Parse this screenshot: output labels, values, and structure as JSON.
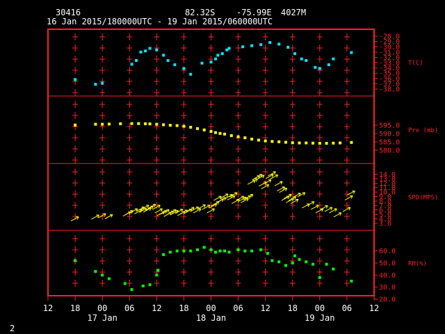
{
  "header": {
    "station": "30416",
    "lat": "82.32S",
    "lon": "-75.99E",
    "elev": "4027M",
    "range": "16 Jan 2015/180000UTC - 19 Jan 2015/060000UTC"
  },
  "footer": {
    "page": "2"
  },
  "colors": {
    "frame": "#ff2020",
    "temp": "#00e5ff",
    "pres": "#ffff00",
    "wind": "#ffff00",
    "rh": "#00ff00",
    "text": "#ffffff"
  },
  "chart_data": {
    "type": "scatter",
    "x_unit_hours_from_17Jan00UTC": true,
    "x_ticks": [
      "12",
      "18",
      "00",
      "06",
      "12",
      "18",
      "00",
      "06",
      "12",
      "18",
      "00",
      "06",
      "12"
    ],
    "x_tick_hours": [
      -12,
      -6,
      0,
      6,
      12,
      18,
      24,
      30,
      36,
      42,
      48,
      54,
      60
    ],
    "date_labels": [
      {
        "text": "17 Jan",
        "hour": 0
      },
      {
        "text": "18 Jan",
        "hour": 24
      },
      {
        "text": "19 Jan",
        "hour": 48
      }
    ],
    "panels": [
      {
        "key": "temp",
        "label": "T(C)",
        "ylim": [
          -38,
          -28
        ],
        "ticks": [
          "-28.0",
          "-29.0",
          "-30.0",
          "-31.0",
          "-32.0",
          "-33.0",
          "-34.0",
          "-35.0",
          "-36.0",
          "-37.0",
          "-38.0"
        ],
        "tick_values": [
          -28,
          -29,
          -30,
          -31,
          -32,
          -33,
          -34,
          -35,
          -36,
          -37,
          -38
        ],
        "x": [
          -6,
          -1.5,
          0,
          6.5,
          7.5,
          8.5,
          9.5,
          10.5,
          12,
          13.5,
          14.5,
          16,
          18,
          19.5,
          22,
          24,
          25,
          25.5,
          26.5,
          27.5,
          28,
          31,
          33,
          35,
          37,
          39,
          41,
          42.5,
          44,
          45,
          47,
          48,
          50,
          51,
          55
        ],
        "y": [
          -36.2,
          -37.1,
          -36.9,
          -33.3,
          -32.6,
          -31.0,
          -30.8,
          -30.3,
          -30.6,
          -31.6,
          -32.6,
          -33.4,
          -34.1,
          -35.2,
          -33.1,
          -32.9,
          -32.3,
          -31.6,
          -31.3,
          -30.6,
          -30.3,
          -30.0,
          -29.8,
          -29.6,
          -29.2,
          -29.5,
          -30.1,
          -31.3,
          -32.3,
          -32.6,
          -33.9,
          -34.1,
          -33.4,
          -32.3,
          -31.1
        ]
      },
      {
        "key": "pres",
        "label": "Pre (mb)",
        "ylim": [
          580,
          600
        ],
        "ticks": [
          "595.0",
          "590.0",
          "585.0",
          "580.0"
        ],
        "tick_values": [
          595,
          590,
          585,
          580
        ],
        "x": [
          -6,
          -1.5,
          0,
          1.5,
          4,
          6.5,
          8,
          9.5,
          10.5,
          12,
          13.5,
          15,
          16.5,
          18,
          19.5,
          21,
          22.5,
          24,
          25,
          26,
          27,
          28.5,
          30,
          31.5,
          33,
          34.5,
          36,
          37.5,
          39,
          40.5,
          42,
          43.5,
          45,
          46.5,
          48,
          49.5,
          51,
          52.5,
          55
        ],
        "y": [
          595.1,
          595.6,
          595.6,
          595.7,
          595.9,
          596.0,
          596.0,
          595.9,
          595.8,
          595.6,
          595.3,
          595.0,
          594.8,
          594.4,
          593.8,
          593.0,
          592.2,
          591.3,
          590.6,
          590.1,
          589.7,
          588.8,
          588.1,
          587.5,
          586.7,
          586.1,
          585.6,
          585.3,
          585.1,
          584.8,
          584.5,
          584.4,
          584.4,
          584.3,
          584.2,
          584.2,
          584.3,
          584.4,
          584.7
        ]
      },
      {
        "key": "wind",
        "label": "SPD(MPS)",
        "ylim": [
          3,
          15
        ],
        "ticks": [
          "14.0",
          "13.0",
          "12.0",
          "11.0",
          "10.0",
          "9.0",
          "8.0",
          "7.0",
          "6.0",
          "5.0",
          "4.0",
          "3.0"
        ],
        "tick_values": [
          14,
          13,
          12,
          11,
          10,
          9,
          8,
          7,
          6,
          5,
          4,
          3
        ],
        "x": [
          -6,
          -1.5,
          0,
          1.5,
          5.5,
          6,
          7,
          8,
          8.5,
          9,
          9.5,
          10,
          10.5,
          11,
          12,
          12.5,
          13,
          13.5,
          14,
          14.5,
          15,
          15.5,
          16,
          17,
          17.5,
          18,
          19,
          19.5,
          20.5,
          21,
          22,
          23,
          24,
          24.5,
          25,
          25.5,
          26,
          26.5,
          27,
          28,
          28.5,
          29,
          29.5,
          30.5,
          31,
          31.5,
          32,
          32.5,
          33,
          33.5,
          34,
          34.5,
          35,
          35.5,
          36,
          36.5,
          37,
          37.5,
          38,
          39,
          39.5,
          40,
          40.5,
          41,
          41.5,
          42,
          42.5,
          43,
          44,
          45,
          46,
          47,
          48,
          49,
          50,
          51,
          52,
          54,
          54.5,
          55
        ],
        "y": [
          4.0,
          4.4,
          4.7,
          4.5,
          5.1,
          5.4,
          5.8,
          5.6,
          6.2,
          5.9,
          6.6,
          6.0,
          6.4,
          6.8,
          6.6,
          5.8,
          5.2,
          5.4,
          5.6,
          5.0,
          5.3,
          5.6,
          5.4,
          5.7,
          5.2,
          5.5,
          5.7,
          6.1,
          6.2,
          5.8,
          6.7,
          6.6,
          5.8,
          6.9,
          7.4,
          8.6,
          8.0,
          8.3,
          9.1,
          9.0,
          8.7,
          9.4,
          7.9,
          8.6,
          8.4,
          8.1,
          8.7,
          9.0,
          12.2,
          12.5,
          13.2,
          13.5,
          13.3,
          11.8,
          11.2,
          12.3,
          13.5,
          14.1,
          13.4,
          11.9,
          10.7,
          10.4,
          8.6,
          9.0,
          8.1,
          8.5,
          7.9,
          9.3,
          9.4,
          6.9,
          7.4,
          6.6,
          5.8,
          6.5,
          6.1,
          5.8,
          4.9,
          6.1,
          8.7,
          9.8
        ]
      },
      {
        "key": "rh",
        "label": "RH(%)",
        "ylim": [
          20,
          65
        ],
        "ticks": [
          "60.0",
          "50.0",
          "40.0",
          "30.0",
          "20.0"
        ],
        "tick_values": [
          60,
          50,
          40,
          30,
          20
        ],
        "x": [
          -6,
          -1.5,
          0,
          1.5,
          5,
          6.5,
          9,
          10.5,
          12,
          12.3,
          13.5,
          15,
          16.5,
          18,
          19.5,
          21,
          22.5,
          24,
          25,
          26,
          27,
          28,
          30,
          31.5,
          33,
          35,
          36.5,
          37.5,
          39,
          40.5,
          42,
          42.5,
          43.5,
          45,
          46.5,
          48,
          49.5,
          51,
          55
        ],
        "y": [
          52,
          43,
          40,
          37,
          33,
          28,
          31,
          32,
          40,
          44,
          57,
          59,
          60,
          60,
          60,
          61,
          63,
          61,
          59,
          60,
          60,
          59,
          61,
          60,
          60,
          61,
          58,
          52,
          51,
          48,
          50,
          56,
          53,
          51,
          49,
          38,
          49,
          45,
          35
        ]
      }
    ]
  }
}
